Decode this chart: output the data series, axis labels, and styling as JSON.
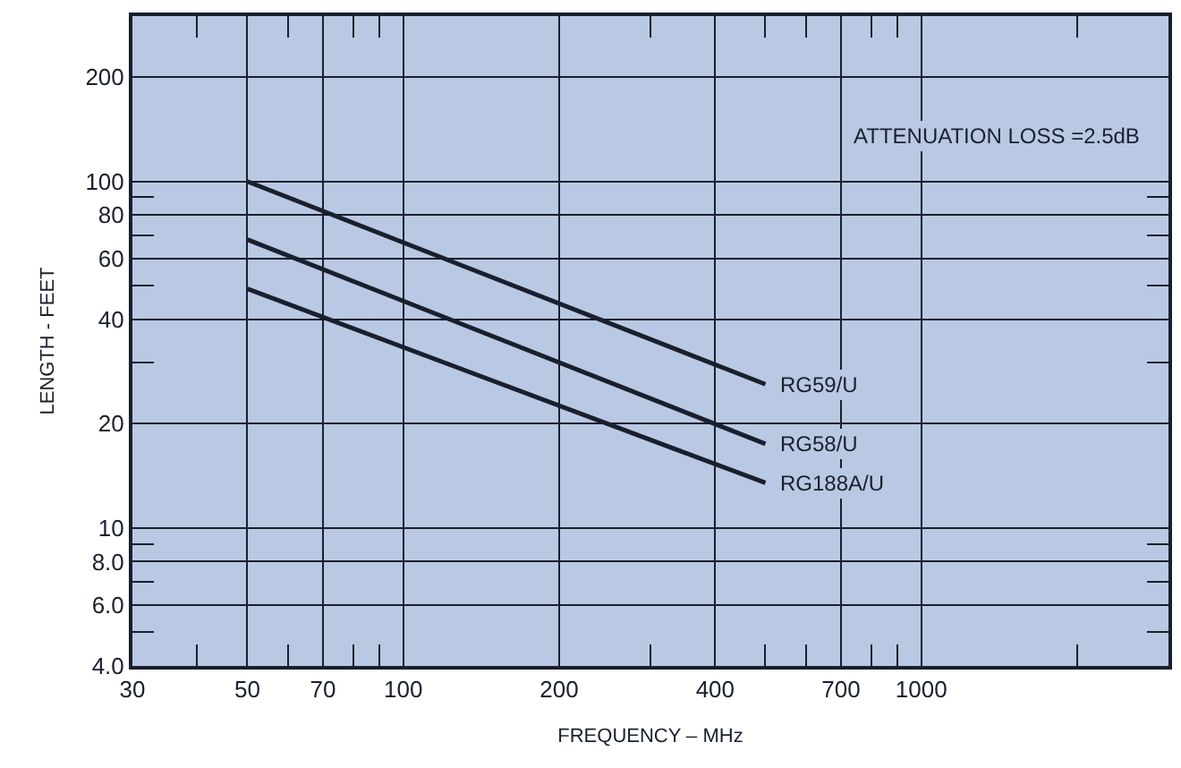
{
  "chart_data": {
    "type": "line",
    "xlabel": "FREQUENCY – MHz",
    "ylabel": "LENGTH - FEET",
    "log": "xy",
    "grid": true,
    "legend": false,
    "marker": "none",
    "line_style": "solid",
    "x": [
      50,
      500
    ],
    "series": [
      {
        "name": "RG59/U",
        "color": "#1a1f2e",
        "values": [
          100,
          26
        ]
      },
      {
        "name": "RG58/U",
        "color": "#1a1f2e",
        "values": [
          68,
          17.5
        ]
      },
      {
        "name": "RG188A/U",
        "color": "#1a1f2e",
        "values": [
          49,
          13.5
        ]
      }
    ],
    "xlim": [
      30,
      3000
    ],
    "ylim": [
      4,
      300
    ],
    "xticks": [
      30,
      {
        "value": 40,
        "label": null
      },
      50,
      {
        "value": 60,
        "label": null
      },
      70,
      {
        "value": 80,
        "label": null
      },
      {
        "value": 90,
        "label": null
      },
      100,
      200,
      {
        "value": 300,
        "label": null
      },
      400,
      {
        "value": 500,
        "label": null
      },
      {
        "value": 600,
        "label": null
      },
      700,
      {
        "value": 800,
        "label": null
      },
      {
        "value": 900,
        "label": null
      },
      1000,
      {
        "value": 2000,
        "label": null
      }
    ],
    "yticks": [
      {
        "value": 4,
        "label": "4.0"
      },
      {
        "value": 5,
        "label": null
      },
      {
        "value": 6,
        "label": "6.0"
      },
      {
        "value": 7,
        "label": null
      },
      {
        "value": 8,
        "label": "8.0"
      },
      {
        "value": 9,
        "label": null
      },
      10,
      20,
      {
        "value": 30,
        "label": null
      },
      40,
      {
        "value": 50,
        "label": null
      },
      60,
      {
        "value": 70,
        "label": null
      },
      80,
      {
        "value": 90,
        "label": null
      },
      100,
      200
    ],
    "annotations": [
      "ATTENUATION LOSS =2.5dB"
    ]
  }
}
